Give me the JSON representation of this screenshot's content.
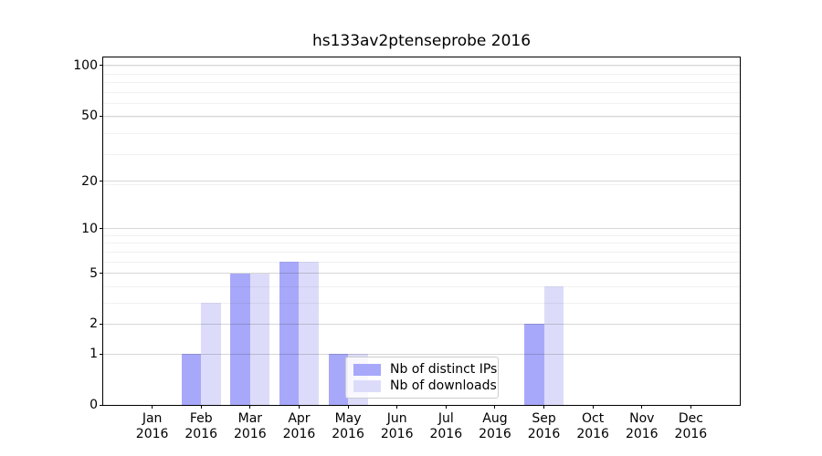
{
  "title": "hs133av2ptenseprobe 2016",
  "colors": {
    "distinct_ips": "#a8a8fa",
    "downloads": "#dcdcfa",
    "grid_major": "#d6d6d6",
    "grid_minor": "#efefef",
    "axis": "#000000"
  },
  "legend": {
    "items": [
      {
        "label": "Nb of distinct IPs",
        "color_key": "distinct_ips"
      },
      {
        "label": "Nb of downloads",
        "color_key": "downloads"
      }
    ]
  },
  "chart_data": {
    "type": "bar",
    "title": "hs133av2ptenseprobe 2016",
    "x_categories": [
      "Jan",
      "Feb",
      "Mar",
      "Apr",
      "May",
      "Jun",
      "Jul",
      "Aug",
      "Sep",
      "Oct",
      "Nov",
      "Dec"
    ],
    "x_year": "2016",
    "series": [
      {
        "name": "Nb of distinct IPs",
        "color": "#a8a8fa",
        "values": [
          0,
          1,
          5,
          6,
          1,
          0,
          0,
          0,
          2,
          0,
          0,
          0
        ]
      },
      {
        "name": "Nb of downloads",
        "color": "#dcdcfa",
        "values": [
          0,
          3,
          5,
          6,
          1,
          0,
          0,
          0,
          4,
          0,
          0,
          0
        ]
      }
    ],
    "y_ticks": [
      0,
      1,
      2,
      5,
      10,
      20,
      50,
      100
    ],
    "y_scale": "log10(1+value)",
    "ylim": [
      0,
      110
    ],
    "xlabel": "",
    "ylabel": "",
    "grid": "horizontal major+minor",
    "legend_position": "inside lower-center"
  }
}
